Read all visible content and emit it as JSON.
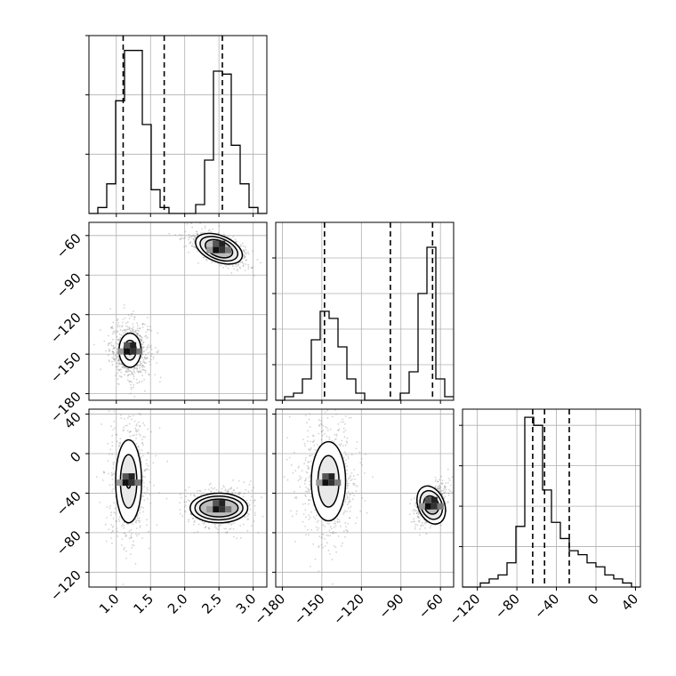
{
  "chart_data": {
    "type": "corner",
    "grid": true,
    "style": {
      "line_color": "#000000",
      "grid_color": "#b0b0b0",
      "scatter_color": "#808080",
      "background": "#ffffff"
    },
    "parameters": [
      {
        "id": "p0",
        "range": [
          0.6,
          3.2
        ],
        "ticks": [
          1.0,
          1.5,
          2.0,
          2.5,
          3.0
        ],
        "tick_labels": [
          "1.0",
          "1.5",
          "2.0",
          "2.5",
          "3.0"
        ]
      },
      {
        "id": "p1",
        "range": [
          -185,
          -50
        ],
        "ticks": [
          -180,
          -150,
          -120,
          -90,
          -60
        ],
        "tick_labels": [
          "−180",
          "−150",
          "−120",
          "−90",
          "−60"
        ]
      },
      {
        "id": "p2",
        "range": [
          -135,
          45
        ],
        "ticks": [
          -120,
          -80,
          -40,
          0,
          40
        ],
        "tick_labels": [
          "−120",
          "−80",
          "−40",
          "0",
          "40"
        ]
      }
    ],
    "histograms": [
      {
        "param": 0,
        "bin_edges": [
          0.6,
          0.73,
          0.86,
          0.99,
          1.12,
          1.25,
          1.38,
          1.51,
          1.64,
          1.77,
          1.9,
          2.03,
          2.16,
          2.29,
          2.42,
          2.55,
          2.68,
          2.81,
          2.94,
          3.07,
          3.2
        ],
        "counts": [
          0,
          2,
          10,
          38,
          55,
          55,
          30,
          8,
          2,
          0,
          0,
          0,
          3,
          18,
          48,
          47,
          23,
          10,
          2,
          0
        ],
        "ymax": 60,
        "ygrid": [
          20,
          40,
          60
        ],
        "quantiles": [
          1.1,
          1.7,
          2.55
        ]
      },
      {
        "param": 1,
        "bin_edges": [
          -185,
          -178.25,
          -171.5,
          -164.75,
          -158,
          -151.25,
          -144.5,
          -137.75,
          -131,
          -124.25,
          -117.5,
          -110.75,
          -104,
          -97.25,
          -90.5,
          -83.75,
          -77,
          -70.25,
          -63.5,
          -56.75,
          -50
        ],
        "counts": [
          0,
          1,
          2,
          6,
          17,
          25,
          23,
          15,
          6,
          2,
          0,
          0,
          0,
          0,
          2,
          8,
          30,
          43,
          6,
          1
        ],
        "ymax": 50,
        "ygrid": [
          10,
          20,
          30,
          40
        ],
        "quantiles": [
          -148,
          -98,
          -66
        ]
      },
      {
        "param": 2,
        "bin_edges": [
          -135,
          -126,
          -117,
          -108,
          -99,
          -90,
          -81,
          -72,
          -63,
          -54,
          -45,
          -36,
          -27,
          -18,
          -9,
          0,
          9,
          18,
          27,
          36,
          45
        ],
        "counts": [
          0,
          0,
          1,
          2,
          3,
          6,
          15,
          42,
          40,
          24,
          16,
          12,
          9,
          8,
          6,
          5,
          3,
          2,
          1,
          0
        ],
        "ymax": 44,
        "ygrid": [
          10,
          20,
          30,
          40
        ],
        "quantiles": [
          -64,
          -52,
          -27
        ]
      }
    ],
    "joint_panels": [
      {
        "x_param": 0,
        "y_param": 1,
        "modes": [
          {
            "center": [
              1.2,
              -147
            ],
            "sigma": [
              0.13,
              10
            ],
            "rho": 0,
            "levels": [
              [
                0.16,
                13
              ],
              [
                0.09,
                7.5
              ],
              [
                0.04,
                3.2
              ]
            ]
          },
          {
            "center": [
              2.5,
              -70
            ],
            "sigma": [
              0.2,
              6
            ],
            "rho": -0.6,
            "levels": [
              [
                0.36,
                10
              ],
              [
                0.29,
                8
              ],
              [
                0.21,
                6
              ]
            ]
          }
        ]
      },
      {
        "x_param": 0,
        "y_param": 2,
        "modes": [
          {
            "center": [
              1.18,
              -28
            ],
            "sigma": [
              0.13,
              28
            ],
            "rho": 0,
            "levels": [
              [
                0.19,
                42
              ],
              [
                0.12,
                27
              ],
              [
                0.035,
                7
              ]
            ]
          },
          {
            "center": [
              2.5,
              -55
            ],
            "sigma": [
              0.2,
              9
            ],
            "rho": 0,
            "levels": [
              [
                0.42,
                15
              ],
              [
                0.35,
                12
              ],
              [
                0.28,
                9
              ]
            ]
          }
        ]
      },
      {
        "x_param": 1,
        "y_param": 2,
        "modes": [
          {
            "center": [
              -145,
              -28
            ],
            "sigma": [
              10,
              28
            ],
            "rho": 0,
            "levels": [
              [
                13,
                40
              ],
              [
                8,
                26
              ]
            ]
          },
          {
            "center": [
              -67,
              -52
            ],
            "sigma": [
              5,
              9
            ],
            "rho": 0.5,
            "levels": [
              [
                10,
                20
              ],
              [
                8,
                15
              ],
              [
                5.5,
                9.5
              ]
            ]
          }
        ]
      }
    ]
  }
}
